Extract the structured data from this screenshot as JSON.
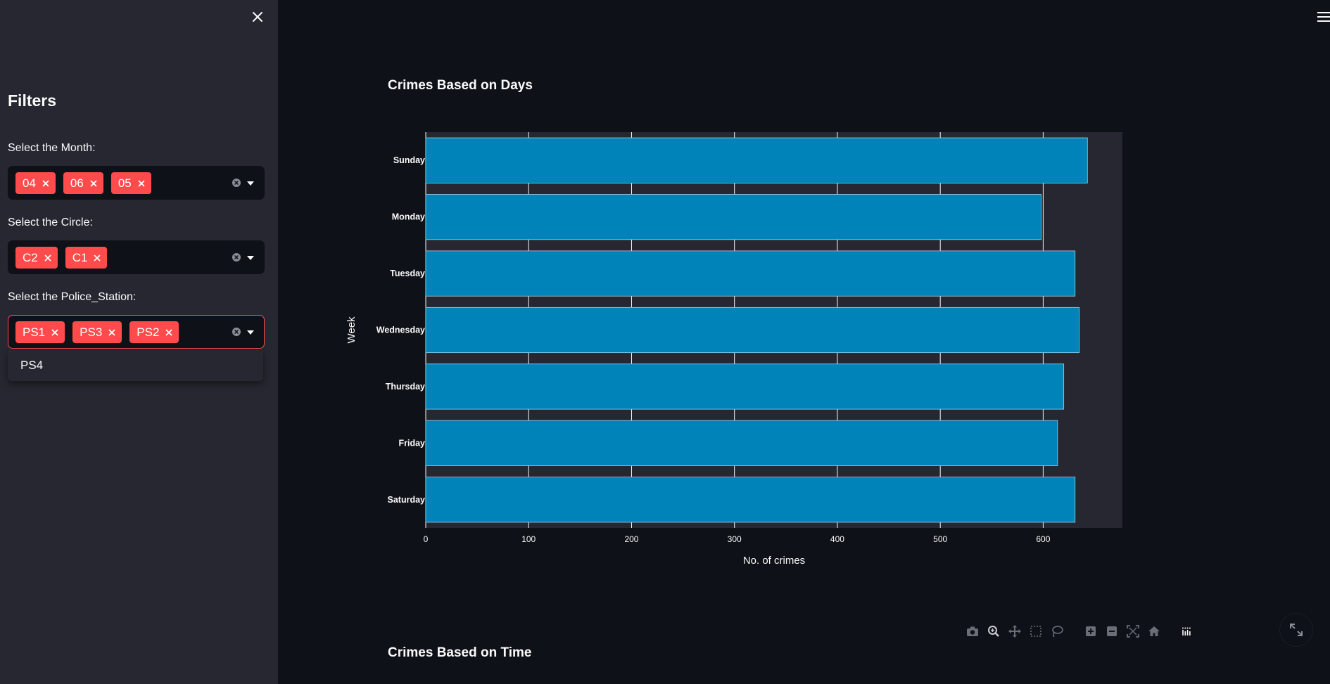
{
  "sidebar": {
    "title": "Filters",
    "filters": [
      {
        "label": "Select the Month:",
        "selected": [
          "04",
          "06",
          "05"
        ]
      },
      {
        "label": "Select the Circle:",
        "selected": [
          "C2",
          "C1"
        ]
      },
      {
        "label": "Select the Police_Station:",
        "selected": [
          "PS1",
          "PS3",
          "PS2"
        ]
      }
    ],
    "dropdown_options": [
      "PS4"
    ]
  },
  "headings": {
    "chart1": "Crimes Based on Days",
    "chart2": "Crimes Based on Time"
  },
  "colors": {
    "accent": "#ff4b4b",
    "bar": "#0083b8",
    "plot_bg": "#262730",
    "page_bg": "#0e1117"
  },
  "chart_data": {
    "type": "bar",
    "orientation": "horizontal",
    "title": "",
    "xlabel": "No. of crimes",
    "ylabel": "Week",
    "categories": [
      "Sunday",
      "Monday",
      "Tuesday",
      "Wednesday",
      "Thursday",
      "Friday",
      "Saturday"
    ],
    "values": [
      643,
      598,
      631,
      635,
      620,
      614,
      631
    ],
    "xlim": [
      0,
      677
    ],
    "xticks": [
      "0",
      "100",
      "200",
      "300",
      "400",
      "500",
      "600"
    ],
    "grid": true,
    "legend": "none"
  },
  "icons": {
    "close": "close-icon",
    "menu": "hamburger-menu-icon",
    "modebar": [
      "camera-icon",
      "zoom-icon",
      "pan-icon",
      "box-select-icon",
      "lasso-select-icon",
      "zoom-in-icon",
      "zoom-out-icon",
      "autoscale-icon",
      "reset-axes-icon",
      "plotly-logo-icon"
    ],
    "fullscreen": "fullscreen-icon"
  }
}
